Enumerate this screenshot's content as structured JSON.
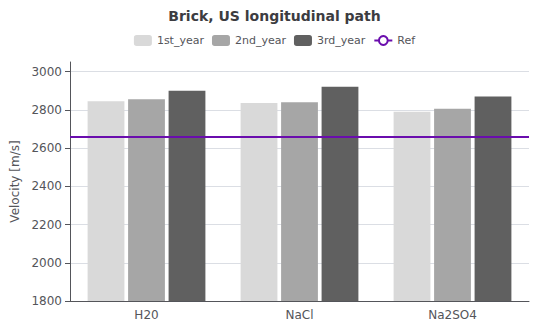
{
  "chart_data": {
    "type": "bar",
    "title": "Brick, US longitudinal path",
    "ylabel": "Velocity [m/s]",
    "categories": [
      "H20",
      "NaCl",
      "Na2SO4"
    ],
    "series": [
      {
        "name": "1st_year",
        "color": "#d9d9d9",
        "values": [
          2845,
          2835,
          2790
        ]
      },
      {
        "name": "2nd_year",
        "color": "#a6a6a6",
        "values": [
          2855,
          2840,
          2805
        ]
      },
      {
        "name": "3rd_year",
        "color": "#606060",
        "values": [
          2900,
          2920,
          2870
        ]
      }
    ],
    "reference_line": {
      "name": "Ref",
      "value": 2660,
      "color": "#6a0dad"
    },
    "ylim": [
      1800,
      3050
    ],
    "yticks": [
      1800,
      2000,
      2200,
      2400,
      2600,
      2800,
      3000
    ],
    "grid": true,
    "legend": "top"
  }
}
